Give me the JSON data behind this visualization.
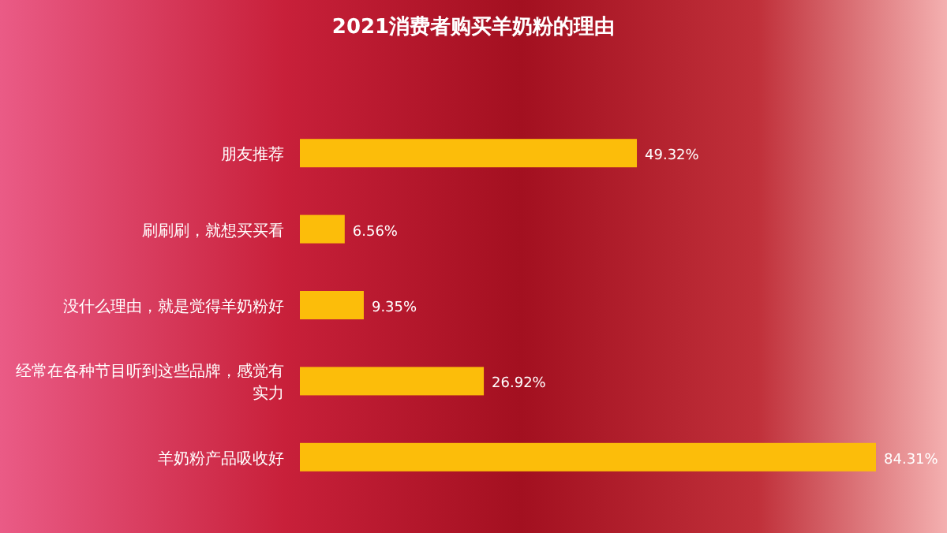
{
  "chart_data": {
    "type": "bar",
    "orientation": "horizontal",
    "title": "2021消费者购买羊奶粉的理由",
    "categories": [
      "朋友推荐",
      "刷刷刷，就想买买看",
      "没什么理由，就是觉得羊奶粉好",
      "经常在各种节目听到这些品牌，感觉有实力",
      "羊奶粉产品吸收好"
    ],
    "values": [
      49.32,
      6.56,
      9.35,
      26.92,
      84.31
    ],
    "value_labels": [
      "49.32%",
      "6.56%",
      "9.35%",
      "26.92%",
      "84.31%"
    ],
    "color": "#fcbd0a"
  }
}
